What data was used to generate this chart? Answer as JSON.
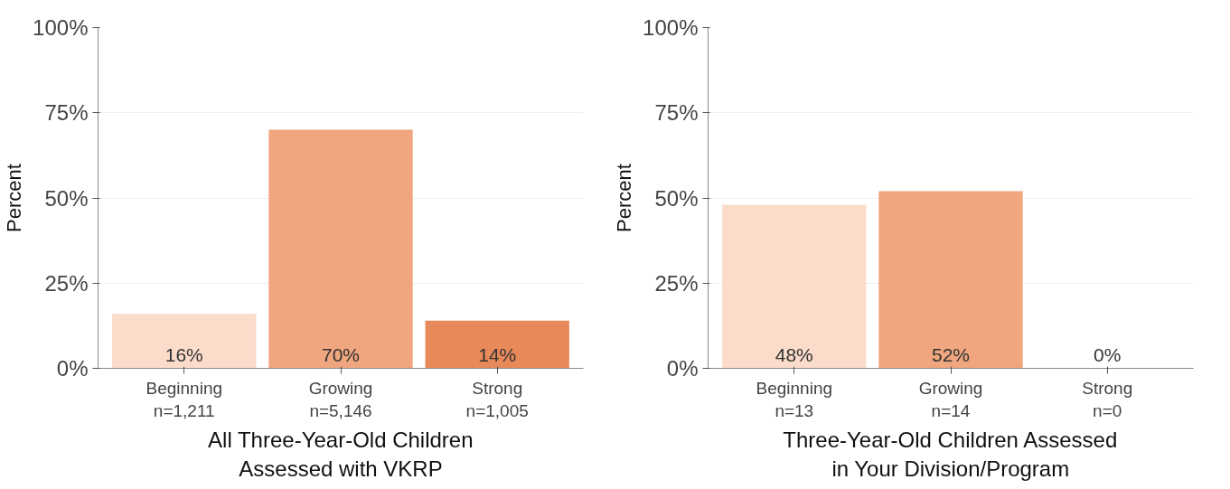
{
  "chart_data": [
    {
      "type": "bar",
      "xlabel": "All Three-Year-Old Children\nAssessed with VKRP",
      "ylabel": "Percent",
      "categories": [
        "Beginning\nn=1,211",
        "Growing\nn=5,146",
        "Strong\nn=1,005"
      ],
      "values": [
        16,
        70,
        14
      ],
      "colors": [
        "#fbdccb",
        "#f0a67e",
        "#e8895a"
      ],
      "value_labels": [
        "16%",
        "70%",
        "14%"
      ],
      "ylim": [
        0,
        100
      ],
      "yticks": [
        {
          "value": 0,
          "label": "0%"
        },
        {
          "value": 25,
          "label": "25%"
        },
        {
          "value": 50,
          "label": "50%"
        },
        {
          "value": 75,
          "label": "75%"
        },
        {
          "value": 100,
          "label": "100%"
        }
      ],
      "grid": "y"
    },
    {
      "type": "bar",
      "xlabel": "Three-Year-Old Children Assessed\nin Your Division/Program",
      "ylabel": "Percent",
      "categories": [
        "Beginning\nn=13",
        "Growing\nn=14",
        "Strong\nn=0"
      ],
      "values": [
        48,
        52,
        0
      ],
      "colors": [
        "#fbdccb",
        "#f0a67e",
        "#e8895a"
      ],
      "value_labels": [
        "48%",
        "52%",
        "0%"
      ],
      "ylim": [
        0,
        100
      ],
      "yticks": [
        {
          "value": 0,
          "label": "0%"
        },
        {
          "value": 25,
          "label": "25%"
        },
        {
          "value": 50,
          "label": "50%"
        },
        {
          "value": 75,
          "label": "75%"
        },
        {
          "value": 100,
          "label": "100%"
        }
      ],
      "grid": "y"
    }
  ]
}
